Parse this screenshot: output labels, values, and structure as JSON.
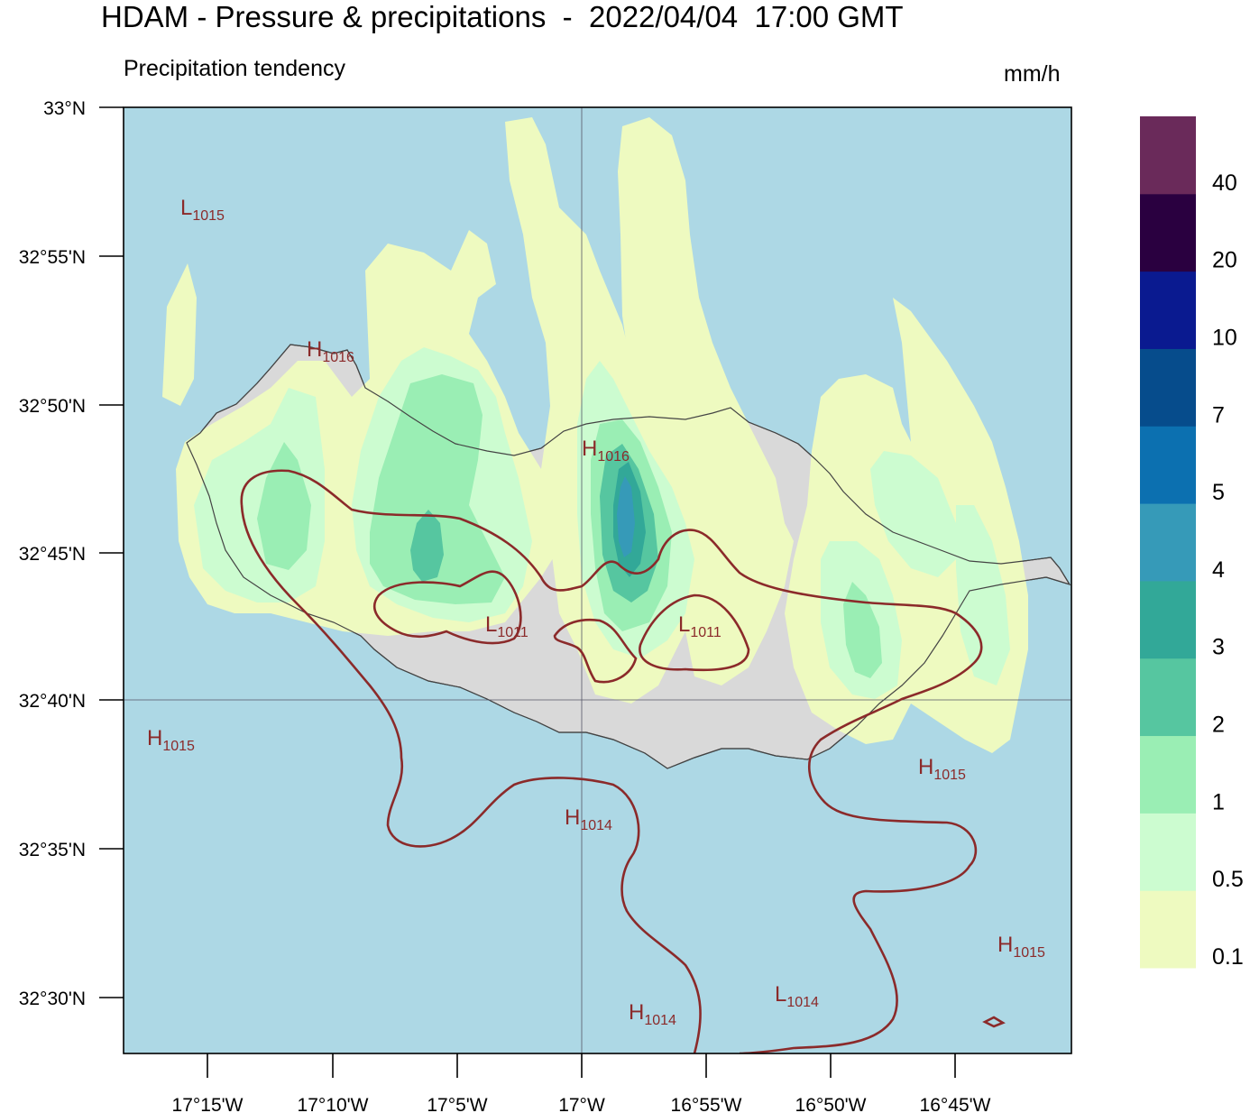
{
  "title": "HDAM - Pressure & precipitations  -  2022/04/04  17:00 GMT",
  "subtitle": "Precipitation tendency",
  "units": "mm/h",
  "axes": {
    "lat_labels": [
      "33°N",
      "32°55'N",
      "32°50'N",
      "32°45'N",
      "32°40'N",
      "32°35'N",
      "32°30'N"
    ],
    "lon_labels": [
      "17°15'W",
      "17°10'W",
      "17°5'W",
      "17°W",
      "16°55'W",
      "16°50'W",
      "16°45'W"
    ]
  },
  "colorbar": {
    "labels": [
      "0.1",
      "0.5",
      "1",
      "2",
      "3",
      "4",
      "5",
      "7",
      "10",
      "20",
      "40"
    ],
    "colors": [
      "#eefac0",
      "#ccfcd0",
      "#9aeeb4",
      "#56c6a0",
      "#32a898",
      "#369ab8",
      "#0c70b0",
      "#064c8c",
      "#0a1a90",
      "#2a0040",
      "#6a2a5a"
    ]
  },
  "colors": {
    "sea": "#add8e5",
    "land": "#d9d9d9",
    "isobar": "#8b2a2a"
  },
  "pressure_labels": [
    {
      "type": "L",
      "value": "1015"
    },
    {
      "type": "H",
      "value": "1016"
    },
    {
      "type": "H",
      "value": "1016"
    },
    {
      "type": "L",
      "value": "1011"
    },
    {
      "type": "L",
      "value": "1011"
    },
    {
      "type": "H",
      "value": "1015"
    },
    {
      "type": "H",
      "value": "1015"
    },
    {
      "type": "H",
      "value": "1014"
    },
    {
      "type": "H",
      "value": "1015"
    },
    {
      "type": "H",
      "value": "1014"
    },
    {
      "type": "L",
      "value": "1014"
    }
  ]
}
